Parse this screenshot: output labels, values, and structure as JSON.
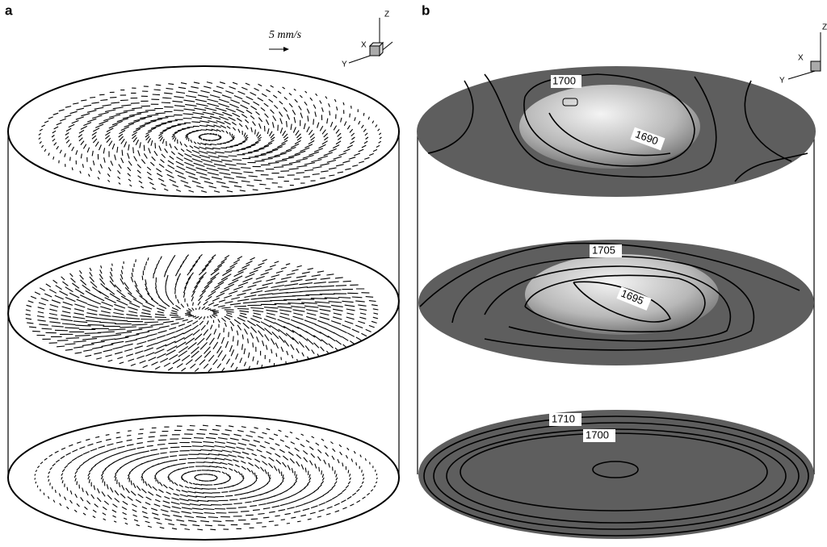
{
  "panel_a": {
    "label": "a",
    "scale_label": "5 mm/s",
    "axes": {
      "z": "Z",
      "x": "X",
      "y": "Y"
    }
  },
  "panel_b": {
    "label": "b",
    "axes": {
      "z": "Z",
      "x": "X",
      "y": "Y"
    },
    "contour_labels": [
      "1700",
      "1690",
      "1705",
      "1695",
      "1710",
      "1700"
    ]
  }
}
